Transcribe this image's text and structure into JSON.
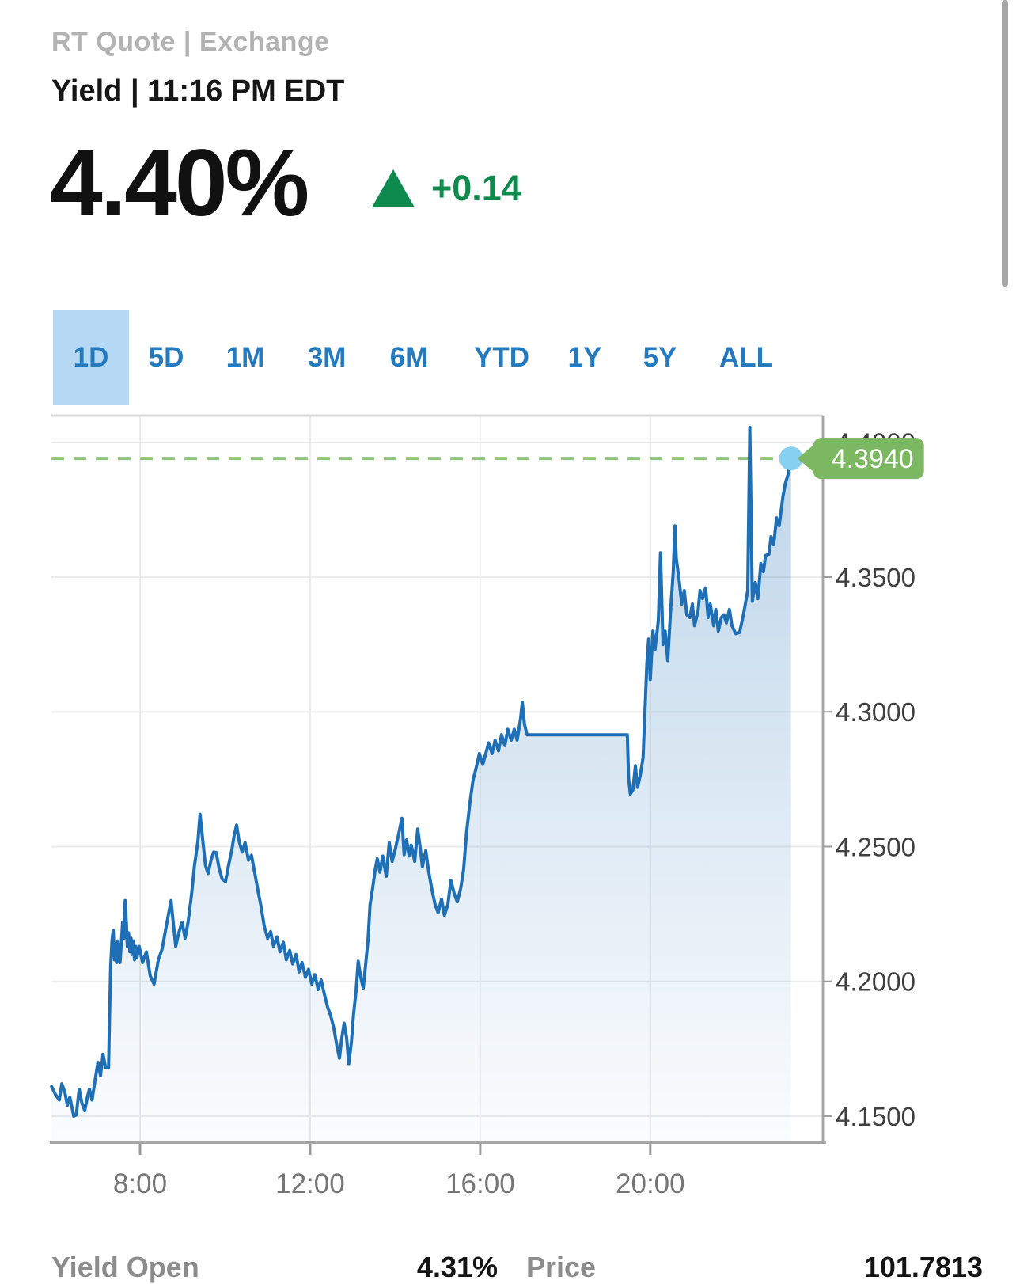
{
  "header": {
    "source_line": "RT Quote | Exchange",
    "title": "Yield | 11:16 PM EDT"
  },
  "quote": {
    "value": "4.40%",
    "direction_icon": "triangle-up",
    "change": "+0.14"
  },
  "tabs": {
    "items": [
      {
        "label": "1D",
        "selected": true
      },
      {
        "label": "5D",
        "selected": false
      },
      {
        "label": "1M",
        "selected": false
      },
      {
        "label": "3M",
        "selected": false
      },
      {
        "label": "6M",
        "selected": false
      },
      {
        "label": "YTD",
        "selected": false
      },
      {
        "label": "1Y",
        "selected": false
      },
      {
        "label": "5Y",
        "selected": false
      },
      {
        "label": "ALL",
        "selected": false
      }
    ]
  },
  "chart_data": {
    "type": "area",
    "x_unit": "hour_of_day",
    "xlim": [
      5.916,
      24.06
    ],
    "ylim": [
      4.1403,
      4.4099
    ],
    "grid": true,
    "x_ticks": [
      {
        "t": 8,
        "label": "8:00"
      },
      {
        "t": 12,
        "label": "12:00"
      },
      {
        "t": 16,
        "label": "16:00"
      },
      {
        "t": 20,
        "label": "20:00"
      }
    ],
    "y_ticks": [
      {
        "v": 4.4,
        "label": "4.4000"
      },
      {
        "v": 4.35,
        "label": "4.3500"
      },
      {
        "v": 4.3,
        "label": "4.3000"
      },
      {
        "v": 4.25,
        "label": "4.2500"
      },
      {
        "v": 4.2,
        "label": "4.2000"
      },
      {
        "v": 4.15,
        "label": "4.1500"
      }
    ],
    "last": {
      "t": 23.31,
      "v": 4.394,
      "label": "4.3940"
    },
    "series": [
      {
        "name": "Yield",
        "points": [
          [
            5.92,
            4.161
          ],
          [
            6.01,
            4.158
          ],
          [
            6.1,
            4.156
          ],
          [
            6.16,
            4.162
          ],
          [
            6.23,
            4.159
          ],
          [
            6.29,
            4.154
          ],
          [
            6.35,
            4.157
          ],
          [
            6.44,
            4.15
          ],
          [
            6.5,
            4.1505
          ],
          [
            6.57,
            4.16
          ],
          [
            6.63,
            4.155
          ],
          [
            6.7,
            4.152
          ],
          [
            6.76,
            4.157
          ],
          [
            6.81,
            4.16
          ],
          [
            6.87,
            4.156
          ],
          [
            6.94,
            4.163
          ],
          [
            7.01,
            4.17
          ],
          [
            7.07,
            4.165
          ],
          [
            7.13,
            4.173
          ],
          [
            7.19,
            4.168
          ],
          [
            7.26,
            4.168
          ],
          [
            7.28,
            4.185
          ],
          [
            7.31,
            4.206
          ],
          [
            7.34,
            4.215
          ],
          [
            7.37,
            4.219
          ],
          [
            7.4,
            4.208
          ],
          [
            7.42,
            4.214
          ],
          [
            7.45,
            4.207
          ],
          [
            7.48,
            4.215
          ],
          [
            7.51,
            4.209
          ],
          [
            7.53,
            4.207
          ],
          [
            7.56,
            4.214
          ],
          [
            7.59,
            4.222
          ],
          [
            7.62,
            4.216
          ],
          [
            7.65,
            4.23
          ],
          [
            7.68,
            4.221
          ],
          [
            7.7,
            4.213
          ],
          [
            7.73,
            4.218
          ],
          [
            7.76,
            4.211
          ],
          [
            7.79,
            4.216
          ],
          [
            7.81,
            4.21
          ],
          [
            7.84,
            4.215
          ],
          [
            7.87,
            4.208
          ],
          [
            7.9,
            4.213
          ],
          [
            7.93,
            4.209
          ],
          [
            7.98,
            4.213
          ],
          [
            8.06,
            4.207
          ],
          [
            8.15,
            4.211
          ],
          [
            8.24,
            4.202
          ],
          [
            8.33,
            4.199
          ],
          [
            8.43,
            4.208
          ],
          [
            8.52,
            4.212
          ],
          [
            8.61,
            4.22
          ],
          [
            8.67,
            4.225
          ],
          [
            8.73,
            4.23
          ],
          [
            8.78,
            4.222
          ],
          [
            8.84,
            4.213
          ],
          [
            8.91,
            4.218
          ],
          [
            8.99,
            4.222
          ],
          [
            9.06,
            4.216
          ],
          [
            9.13,
            4.222
          ],
          [
            9.21,
            4.232
          ],
          [
            9.28,
            4.243
          ],
          [
            9.36,
            4.252
          ],
          [
            9.41,
            4.262
          ],
          [
            9.49,
            4.25
          ],
          [
            9.54,
            4.243
          ],
          [
            9.6,
            4.24
          ],
          [
            9.67,
            4.245
          ],
          [
            9.73,
            4.248
          ],
          [
            9.79,
            4.2478
          ],
          [
            9.86,
            4.242
          ],
          [
            9.93,
            4.238
          ],
          [
            10.01,
            4.237
          ],
          [
            10.08,
            4.243
          ],
          [
            10.16,
            4.249
          ],
          [
            10.21,
            4.2538
          ],
          [
            10.27,
            4.258
          ],
          [
            10.33,
            4.252
          ],
          [
            10.4,
            4.248
          ],
          [
            10.47,
            4.2515
          ],
          [
            10.55,
            4.245
          ],
          [
            10.62,
            4.2468
          ],
          [
            10.7,
            4.24
          ],
          [
            10.77,
            4.234
          ],
          [
            10.85,
            4.2275
          ],
          [
            10.92,
            4.2205
          ],
          [
            11.0,
            4.216
          ],
          [
            11.07,
            4.2185
          ],
          [
            11.14,
            4.213
          ],
          [
            11.22,
            4.2165
          ],
          [
            11.29,
            4.211
          ],
          [
            11.37,
            4.2145
          ],
          [
            11.44,
            4.208
          ],
          [
            11.52,
            4.2115
          ],
          [
            11.59,
            4.2065
          ],
          [
            11.67,
            4.21
          ],
          [
            11.74,
            4.2035
          ],
          [
            11.81,
            4.207
          ],
          [
            11.89,
            4.2015
          ],
          [
            11.96,
            4.2045
          ],
          [
            12.04,
            4.199
          ],
          [
            12.11,
            4.2025
          ],
          [
            12.19,
            4.197
          ],
          [
            12.26,
            4.2005
          ],
          [
            12.33,
            4.1955
          ],
          [
            12.41,
            4.1905
          ],
          [
            12.48,
            4.1875
          ],
          [
            12.56,
            4.1825
          ],
          [
            12.63,
            4.176
          ],
          [
            12.69,
            4.1715
          ],
          [
            12.74,
            4.1785
          ],
          [
            12.8,
            4.1845
          ],
          [
            12.86,
            4.179
          ],
          [
            12.91,
            4.1695
          ],
          [
            12.97,
            4.1775
          ],
          [
            13.02,
            4.1875
          ],
          [
            13.08,
            4.1965
          ],
          [
            13.13,
            4.2075
          ],
          [
            13.19,
            4.2015
          ],
          [
            13.25,
            4.1975
          ],
          [
            13.3,
            4.2055
          ],
          [
            13.36,
            4.215
          ],
          [
            13.41,
            4.2285
          ],
          [
            13.47,
            4.2345
          ],
          [
            13.53,
            4.2415
          ],
          [
            13.58,
            4.2455
          ],
          [
            13.64,
            4.2405
          ],
          [
            13.71,
            4.2465
          ],
          [
            13.79,
            4.239
          ],
          [
            13.86,
            4.2515
          ],
          [
            13.93,
            4.2445
          ],
          [
            14.01,
            4.2495
          ],
          [
            14.08,
            4.2545
          ],
          [
            14.16,
            4.2605
          ],
          [
            14.21,
            4.247
          ],
          [
            14.27,
            4.2525
          ],
          [
            14.33,
            4.2465
          ],
          [
            14.38,
            4.2505
          ],
          [
            14.46,
            4.2445
          ],
          [
            14.53,
            4.2565
          ],
          [
            14.59,
            4.2495
          ],
          [
            14.64,
            4.2425
          ],
          [
            14.72,
            4.2485
          ],
          [
            14.79,
            4.2405
          ],
          [
            14.87,
            4.2335
          ],
          [
            14.94,
            4.2285
          ],
          [
            15.01,
            4.2255
          ],
          [
            15.09,
            4.2305
          ],
          [
            15.16,
            4.2245
          ],
          [
            15.24,
            4.2285
          ],
          [
            15.31,
            4.2375
          ],
          [
            15.39,
            4.2325
          ],
          [
            15.46,
            4.2295
          ],
          [
            15.54,
            4.2345
          ],
          [
            15.61,
            4.2415
          ],
          [
            15.68,
            4.2555
          ],
          [
            15.76,
            4.2665
          ],
          [
            15.83,
            4.2745
          ],
          [
            15.91,
            4.2795
          ],
          [
            15.98,
            4.2845
          ],
          [
            16.06,
            4.2805
          ],
          [
            16.13,
            4.2845
          ],
          [
            16.2,
            4.2885
          ],
          [
            16.28,
            4.2845
          ],
          [
            16.35,
            4.2895
          ],
          [
            16.43,
            4.2855
          ],
          [
            16.5,
            4.2915
          ],
          [
            16.58,
            4.2875
          ],
          [
            16.65,
            4.2935
          ],
          [
            16.73,
            4.2895
          ],
          [
            16.8,
            4.2935
          ],
          [
            16.87,
            4.2895
          ],
          [
            16.95,
            4.2975
          ],
          [
            16.99,
            4.3035
          ],
          [
            17.04,
            4.2955
          ],
          [
            17.1,
            4.2915
          ],
          [
            17.36,
            4.2915
          ],
          [
            17.73,
            4.2915
          ],
          [
            18.1,
            4.2915
          ],
          [
            18.47,
            4.2915
          ],
          [
            18.85,
            4.2915
          ],
          [
            19.22,
            4.2915
          ],
          [
            19.46,
            4.2915
          ],
          [
            19.49,
            4.2755
          ],
          [
            19.53,
            4.2695
          ],
          [
            19.59,
            4.271
          ],
          [
            19.65,
            4.28
          ],
          [
            19.7,
            4.272
          ],
          [
            19.76,
            4.276
          ],
          [
            19.83,
            4.283
          ],
          [
            19.92,
            4.318
          ],
          [
            19.96,
            4.327
          ],
          [
            20.0,
            4.312
          ],
          [
            20.06,
            4.33
          ],
          [
            20.11,
            4.323
          ],
          [
            20.19,
            4.334
          ],
          [
            20.24,
            4.359
          ],
          [
            20.3,
            4.325
          ],
          [
            20.35,
            4.33
          ],
          [
            20.41,
            4.319
          ],
          [
            20.48,
            4.338
          ],
          [
            20.54,
            4.352
          ],
          [
            20.58,
            4.369
          ],
          [
            20.61,
            4.357
          ],
          [
            20.67,
            4.35
          ],
          [
            20.74,
            4.34
          ],
          [
            20.8,
            4.345
          ],
          [
            20.86,
            4.336
          ],
          [
            20.93,
            4.335
          ],
          [
            20.99,
            4.34
          ],
          [
            21.04,
            4.332
          ],
          [
            21.12,
            4.337
          ],
          [
            21.17,
            4.345
          ],
          [
            21.23,
            4.342
          ],
          [
            21.3,
            4.346
          ],
          [
            21.36,
            4.335
          ],
          [
            21.41,
            4.34
          ],
          [
            21.49,
            4.332
          ],
          [
            21.54,
            4.338
          ],
          [
            21.6,
            4.33
          ],
          [
            21.67,
            4.335
          ],
          [
            21.73,
            4.336
          ],
          [
            21.79,
            4.333
          ],
          [
            21.86,
            4.338
          ],
          [
            21.92,
            4.332
          ],
          [
            22.01,
            4.329
          ],
          [
            22.1,
            4.3295
          ],
          [
            22.19,
            4.336
          ],
          [
            22.29,
            4.345
          ],
          [
            22.34,
            4.4055
          ],
          [
            22.4,
            4.341
          ],
          [
            22.47,
            4.348
          ],
          [
            22.53,
            4.342
          ],
          [
            22.6,
            4.355
          ],
          [
            22.66,
            4.352
          ],
          [
            22.71,
            4.358
          ],
          [
            22.79,
            4.3585
          ],
          [
            22.84,
            4.365
          ],
          [
            22.9,
            4.362
          ],
          [
            22.97,
            4.372
          ],
          [
            23.03,
            4.369
          ],
          [
            23.12,
            4.38
          ],
          [
            23.18,
            4.385
          ],
          [
            23.24,
            4.388
          ],
          [
            23.31,
            4.394
          ]
        ]
      }
    ]
  },
  "footer": {
    "items": [
      {
        "label": "Yield Open",
        "value": "4.31%"
      },
      {
        "label": "Price",
        "value": "101.7813"
      }
    ]
  },
  "colors": {
    "accent_blue": "#2579bd",
    "tab_selected_bg": "#b5d8f5",
    "line_blue": "#1e6fb5",
    "marker_blue": "#87d0f2",
    "positive_green": "#0e8a4e",
    "badge_green": "#7cb761",
    "dashed_line_green": "#8fc47b",
    "muted_gray": "#b3b3b3"
  }
}
